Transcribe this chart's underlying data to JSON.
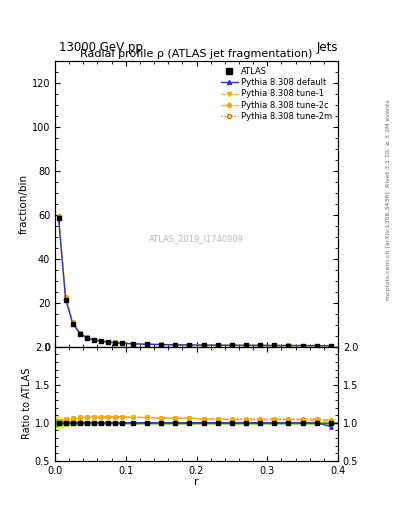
{
  "title": "Radial profile ρ (ATLAS jet fragmentation)",
  "header_left": "13000 GeV pp",
  "header_right": "Jets",
  "ylabel_main": "fraction/bin",
  "ylabel_ratio": "Ratio to ATLAS",
  "xlabel": "r",
  "right_label_top": "Rivet 3.1.10, ≥ 3.2M events",
  "right_label_bottom": "mcplots.cern.ch [arXiv:1306.3436]",
  "watermark": "ATLAS_2019_I1740909",
  "r_values": [
    0.005,
    0.015,
    0.025,
    0.035,
    0.045,
    0.055,
    0.065,
    0.075,
    0.085,
    0.095,
    0.11,
    0.13,
    0.15,
    0.17,
    0.19,
    0.21,
    0.23,
    0.25,
    0.27,
    0.29,
    0.31,
    0.33,
    0.35,
    0.37,
    0.39
  ],
  "atlas_values": [
    58.5,
    21.5,
    10.5,
    6.0,
    4.0,
    3.0,
    2.5,
    2.1,
    1.8,
    1.55,
    1.3,
    1.1,
    0.95,
    0.85,
    0.78,
    0.72,
    0.67,
    0.63,
    0.6,
    0.57,
    0.55,
    0.53,
    0.51,
    0.49,
    0.47
  ],
  "atlas_errors": [
    1.5,
    0.5,
    0.3,
    0.2,
    0.1,
    0.08,
    0.07,
    0.06,
    0.05,
    0.04,
    0.03,
    0.025,
    0.02,
    0.018,
    0.016,
    0.015,
    0.014,
    0.013,
    0.012,
    0.011,
    0.01,
    0.009,
    0.008,
    0.007,
    0.007
  ],
  "default_ratio": [
    1.0,
    1.0,
    1.0,
    1.0,
    1.0,
    1.0,
    1.0,
    1.0,
    1.0,
    1.0,
    1.0,
    1.0,
    1.0,
    1.0,
    1.0,
    1.0,
    1.0,
    1.0,
    1.0,
    1.0,
    1.0,
    1.0,
    1.0,
    1.0,
    0.95
  ],
  "tune1_ratio": [
    1.02,
    1.05,
    1.06,
    1.07,
    1.07,
    1.08,
    1.08,
    1.08,
    1.08,
    1.08,
    1.07,
    1.07,
    1.06,
    1.06,
    1.06,
    1.05,
    1.05,
    1.04,
    1.04,
    1.04,
    1.04,
    1.04,
    1.04,
    1.03,
    1.02
  ],
  "tune2c_ratio": [
    1.01,
    1.04,
    1.05,
    1.06,
    1.07,
    1.07,
    1.08,
    1.08,
    1.08,
    1.08,
    1.07,
    1.07,
    1.06,
    1.06,
    1.06,
    1.05,
    1.05,
    1.05,
    1.05,
    1.05,
    1.05,
    1.04,
    1.04,
    1.04,
    1.03
  ],
  "tune2m_ratio": [
    1.02,
    1.05,
    1.06,
    1.07,
    1.07,
    1.07,
    1.07,
    1.07,
    1.07,
    1.07,
    1.07,
    1.07,
    1.06,
    1.06,
    1.06,
    1.05,
    1.05,
    1.05,
    1.05,
    1.05,
    1.05,
    1.05,
    1.05,
    1.05,
    1.04
  ],
  "color_atlas": "#000000",
  "color_default": "#3333cc",
  "color_tune1": "#ffaa00",
  "color_tune2c": "#ffaa00",
  "color_tune2m": "#cc7700",
  "band_color_green": "#33cc33",
  "band_color_yellow": "#eeee44",
  "ylim_main": [
    0,
    130
  ],
  "ylim_ratio": [
    0.5,
    2.0
  ],
  "yticks_main": [
    0,
    20,
    40,
    60,
    80,
    100,
    120
  ],
  "yticks_ratio": [
    0.5,
    1.0,
    1.5,
    2.0
  ],
  "legend_entries": [
    "ATLAS",
    "Pythia 8.308 default",
    "Pythia 8.308 tune-1",
    "Pythia 8.308 tune-2c",
    "Pythia 8.308 tune-2m"
  ]
}
